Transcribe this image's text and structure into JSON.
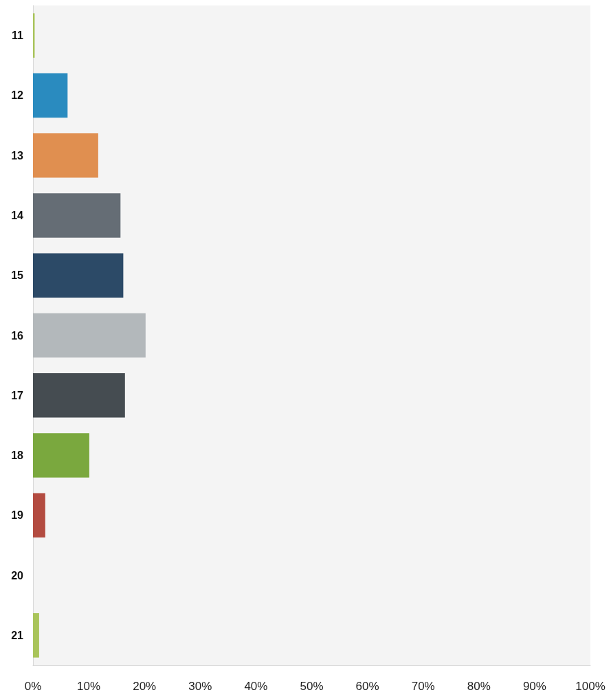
{
  "chart_data": {
    "type": "bar",
    "orientation": "horizontal",
    "categories": [
      "11",
      "12",
      "13",
      "14",
      "15",
      "16",
      "17",
      "18",
      "19",
      "20",
      "21"
    ],
    "values": [
      0.3,
      6.2,
      11.7,
      15.7,
      16.2,
      20.2,
      16.5,
      10.1,
      2.2,
      0,
      1.1
    ],
    "colors": [
      "#a9c45a",
      "#2a8bbf",
      "#e08f50",
      "#656d75",
      "#2c4a67",
      "#b3b8bb",
      "#454c51",
      "#7aa83e",
      "#b34b40",
      "#a9c45a",
      "#a9c45a"
    ],
    "xlim": [
      0,
      100
    ],
    "xticks": [
      {
        "value": 0,
        "label": "0%"
      },
      {
        "value": 10,
        "label": "10%"
      },
      {
        "value": 20,
        "label": "20%"
      },
      {
        "value": 30,
        "label": "30%"
      },
      {
        "value": 40,
        "label": "40%"
      },
      {
        "value": 50,
        "label": "50%"
      },
      {
        "value": 60,
        "label": "60%"
      },
      {
        "value": 70,
        "label": "70%"
      },
      {
        "value": 80,
        "label": "80%"
      },
      {
        "value": 90,
        "label": "90%"
      },
      {
        "value": 100,
        "label": "100%"
      }
    ],
    "data_labels": false
  }
}
